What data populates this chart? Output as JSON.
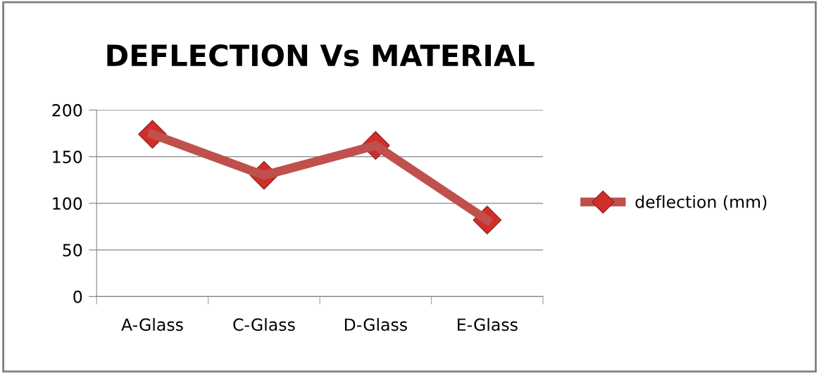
{
  "chart_data": {
    "type": "line",
    "title": "DEFLECTION Vs MATERIAL",
    "categories": [
      "A-Glass",
      "C-Glass",
      "D-Glass",
      "E-Glass"
    ],
    "series": [
      {
        "name": "deflection (mm)",
        "color": "#c0504d",
        "values": [
          174,
          130,
          162,
          82
        ]
      }
    ],
    "ylim": [
      0,
      200
    ],
    "yticks": [
      0,
      50,
      100,
      150,
      200
    ],
    "grid": "y",
    "legend": "right",
    "marker": "diamond",
    "line_style": "solid"
  }
}
